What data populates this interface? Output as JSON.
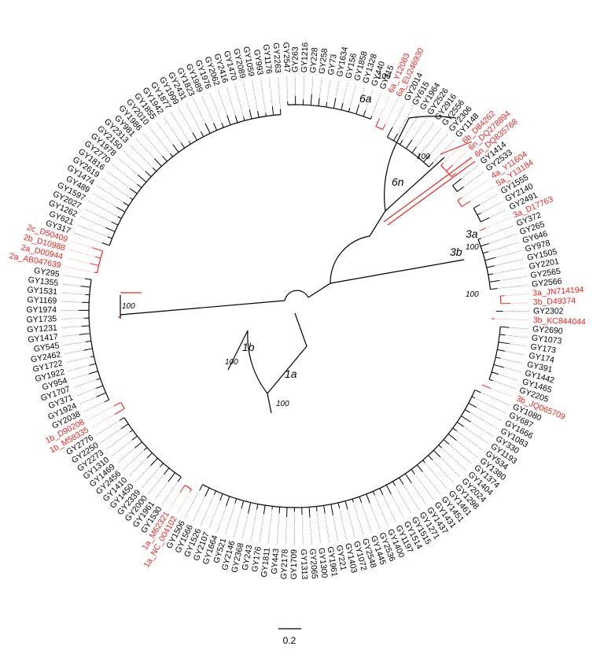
{
  "leaf_groups": [
    {
      "color": "#000000",
      "labels": [
        "GY2547",
        "GY263",
        "GY1216",
        "GY228",
        "GY258",
        "GY73",
        "GY1634",
        "GY156",
        "GY1858",
        "GY1328",
        "GY440",
        "GY115"
      ]
    },
    {
      "color": "#e8261f",
      "labels": [
        "6a_Y12083",
        "6a_EU246930"
      ]
    },
    {
      "color": "#000000",
      "labels": [
        "GY2014",
        "GY615",
        "GY1964",
        "GY2526",
        "GY2916",
        "GY2556",
        "GY2306",
        "GY1148"
      ]
    },
    {
      "color": "#e8261f",
      "labels": [
        "6b_D84262",
        "6n_DQ278894",
        "6n_DQ835768"
      ]
    },
    {
      "color": "#000000",
      "labels": [
        "GY1414",
        "GY2533"
      ]
    },
    {
      "color": "#e8261f",
      "labels": [
        "4a_Y11604",
        "5a_Y13184"
      ]
    },
    {
      "color": "#000000",
      "labels": [
        "GY1555",
        "GY2140",
        "GY2491"
      ]
    },
    {
      "color": "#e8261f",
      "labels": [
        "3a_D17763"
      ]
    },
    {
      "color": "#000000",
      "labels": [
        "GY372",
        "GY265",
        "GY646",
        "GY978",
        "GY1505",
        "GY2201",
        "GY2565",
        "GY2566"
      ]
    },
    {
      "color": "#e8261f",
      "labels": [
        "3a_JN714194",
        "3b_D49374"
      ]
    },
    {
      "color": "#000000",
      "labels": [
        "GY2302"
      ]
    },
    {
      "color": "#e8261f",
      "labels": [
        "3b_KC844044"
      ]
    },
    {
      "color": "#000000",
      "labels": [
        "GY2690",
        "GY1073",
        "GY173",
        "GY174",
        "GY391",
        "GY1442",
        "GY1465",
        "GY2205"
      ]
    },
    {
      "color": "#e8261f",
      "labels": [
        "3b_JQ065709"
      ]
    },
    {
      "color": "#000000",
      "labels": [
        "GY1080",
        "GY687",
        "GY1666",
        "GY1083",
        "GY330",
        "GY1193",
        "GY534",
        "GY1380",
        "GY1374",
        "GY1404",
        "GY2024",
        "GY1298",
        "GY1461",
        "GY1451",
        "GY1431",
        "GY1437",
        "GY1271",
        "GY1515",
        "GY1514",
        "GY1197",
        "GY1400",
        "GY2536",
        "GY1445",
        "GY2548",
        "GY1072",
        "GY1403",
        "GY221",
        "GY1961",
        "GY1300",
        "GY2065",
        "GY1313",
        "GY1709",
        "GY2178",
        "GY443",
        "GY1811",
        "GY176",
        "GY243",
        "GY2368",
        "GY2146",
        "GY521",
        "GY1664",
        "GY2107",
        "GY1526",
        "GY1566",
        "GY1506"
      ]
    },
    {
      "color": "#e8261f",
      "labels": [
        "1a_NC_004102",
        "1a_M62321"
      ]
    },
    {
      "color": "#000000",
      "labels": [
        "GY1530",
        "GY1961",
        "GY2000",
        "GY2339",
        "GY1450",
        "GY1410",
        "GY2456",
        "GY1469",
        "GY1310",
        "GY2273",
        "GY2250",
        "GY2776"
      ]
    },
    {
      "color": "#e8261f",
      "labels": [
        "1b_M58335",
        "1b_D90208"
      ]
    },
    {
      "color": "#000000",
      "labels": [
        "GY2038",
        "GY1924",
        "GY371",
        "GY1707",
        "GY954",
        "GY1922",
        "GY1722",
        "GY2462",
        "GY545",
        "GY1417",
        "GY1231",
        "GY1735",
        "GY1974",
        "GY1169",
        "GY1531",
        "GY1355",
        "GY295"
      ]
    },
    {
      "color": "#e8261f",
      "labels": [
        "2a_AB047639",
        "2a_D00944",
        "2b_D10988",
        "2c_D50409"
      ]
    },
    {
      "color": "#000000",
      "labels": [
        "GY317",
        "GY621",
        "GY1262",
        "GY2027",
        "GY1597",
        "GY489",
        "GY1474",
        "GY2619",
        "GY1816",
        "GY2770",
        "GY1978",
        "GY2150",
        "GY2313",
        "GY981",
        "GY1986",
        "GY2010",
        "GY1855",
        "GY1942",
        "GY1877",
        "GY1999",
        "GY2431",
        "GY1823",
        "GY1989",
        "GY1976",
        "GY2062",
        "GY2416",
        "GY1470",
        "GY2089",
        "GY1059",
        "GY993",
        "GY1176",
        "GY2263"
      ]
    }
  ],
  "clade_labels": [
    "6a",
    "6n",
    "3a",
    "3b",
    "1b",
    "1a"
  ],
  "bootstrap": [
    100,
    100,
    100,
    100,
    100,
    100,
    100
  ],
  "scale_bar": 0.2
}
